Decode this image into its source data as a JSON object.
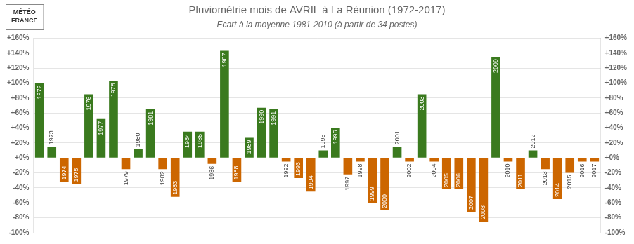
{
  "chart_data": {
    "type": "bar",
    "title": "Pluviométrie mois de AVRIL à La Réunion (1972-2017)",
    "subtitle": "Ecart à la moyenne 1981-2010 (à partir de 34 postes)",
    "annotations": [
      "MÉTÉO",
      "FRANCE"
    ],
    "categories": [
      "1972",
      "1973",
      "1974",
      "1975",
      "1976",
      "1977",
      "1978",
      "1979",
      "1980",
      "1981",
      "1982",
      "1983",
      "1984",
      "1985",
      "1986",
      "1987",
      "1988",
      "1989",
      "1990",
      "1991",
      "1992",
      "1993",
      "1994",
      "1995",
      "1996",
      "1997",
      "1998",
      "1999",
      "2000",
      "2001",
      "2002",
      "2003",
      "2004",
      "2005",
      "2006",
      "2007",
      "2008",
      "2009",
      "2010",
      "2011",
      "2012",
      "2013",
      "2014",
      "2015",
      "2016",
      "2017"
    ],
    "values": [
      100,
      15,
      -32,
      -35,
      85,
      52,
      103,
      -15,
      12,
      65,
      -15,
      -52,
      35,
      35,
      -8,
      143,
      -32,
      27,
      67,
      65,
      -5,
      -27,
      -45,
      10,
      40,
      -22,
      -5,
      -60,
      -70,
      15,
      -5,
      85,
      -5,
      -42,
      -42,
      -72,
      -85,
      135,
      -5,
      -42,
      10,
      -15,
      -55,
      -20,
      -5,
      -5
    ],
    "colors": [
      "#3a7a1e",
      "#3a7a1e",
      "#cc6600",
      "#cc6600",
      "#3a7a1e",
      "#3a7a1e",
      "#3a7a1e",
      "#cc6600",
      "#3a7a1e",
      "#3a7a1e",
      "#cc6600",
      "#cc6600",
      "#3a7a1e",
      "#3a7a1e",
      "#cc6600",
      "#3a7a1e",
      "#cc6600",
      "#3a7a1e",
      "#3a7a1e",
      "#3a7a1e",
      "#cc6600",
      "#cc6600",
      "#cc6600",
      "#3a7a1e",
      "#3a7a1e",
      "#cc6600",
      "#cc6600",
      "#cc6600",
      "#cc6600",
      "#3a7a1e",
      "#cc6600",
      "#3a7a1e",
      "#cc6600",
      "#cc6600",
      "#cc6600",
      "#cc6600",
      "#cc6600",
      "#3a7a1e",
      "#cc6600",
      "#cc6600",
      "#3a7a1e",
      "#cc6600",
      "#cc6600",
      "#cc6600",
      "#cc6600",
      "#cc6600"
    ],
    "ylim": [
      -100,
      160
    ],
    "yticks": [
      {
        "value": -100,
        "label": "-100%"
      },
      {
        "value": -80,
        "label": "-80%"
      },
      {
        "value": -60,
        "label": "-60%"
      },
      {
        "value": -40,
        "label": "-40%"
      },
      {
        "value": -20,
        "label": "-20%"
      },
      {
        "value": 0,
        "label": "+0%"
      },
      {
        "value": 20,
        "label": "+20%"
      },
      {
        "value": 40,
        "label": "+40%"
      },
      {
        "value": 60,
        "label": "+60%"
      },
      {
        "value": 80,
        "label": "+80%"
      },
      {
        "value": 100,
        "label": "+100%"
      },
      {
        "value": 120,
        "label": "+120%"
      },
      {
        "value": 140,
        "label": "+140%"
      },
      {
        "value": 160,
        "label": "+160%"
      }
    ],
    "y2lim": [
      -100,
      160
    ],
    "y2ticks": [
      {
        "value": -100,
        "label": "-100%"
      },
      {
        "value": -80,
        "label": "-80%"
      },
      {
        "value": -60,
        "label": "-60%"
      },
      {
        "value": -40,
        "label": "-40%"
      },
      {
        "value": -20,
        "label": "-20%"
      },
      {
        "value": 0,
        "label": "+0%"
      },
      {
        "value": 20,
        "label": "+20%"
      },
      {
        "value": 40,
        "label": "+40%"
      },
      {
        "value": 60,
        "label": "+60%"
      },
      {
        "value": 80,
        "label": "+80%"
      },
      {
        "value": 100,
        "label": "+100%"
      },
      {
        "value": 120,
        "label": "+120%"
      },
      {
        "value": 140,
        "label": "+140%"
      },
      {
        "value": 160,
        "label": "+160%"
      }
    ],
    "grid": true,
    "tick_labels": "y"
  }
}
